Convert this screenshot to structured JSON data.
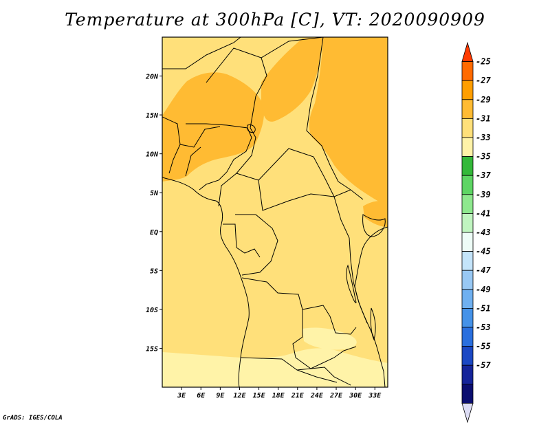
{
  "title": "Temperature at 300hPa [C], VT: 2020090909",
  "footer": "GrADS: IGES/COLA",
  "map": {
    "lon_range": [
      0,
      35
    ],
    "lat_range": [
      -20,
      25
    ],
    "lon_ticks": [
      "3E",
      "6E",
      "9E",
      "12E",
      "15E",
      "18E",
      "21E",
      "24E",
      "27E",
      "30E",
      "33E"
    ],
    "lat_ticks": [
      "20N",
      "15N",
      "10N",
      "5N",
      "EQ",
      "5S",
      "10S",
      "15S"
    ]
  },
  "colorbar": {
    "labels": [
      "-25",
      "-27",
      "-29",
      "-31",
      "-33",
      "-35",
      "-37",
      "-39",
      "-41",
      "-43",
      "-45",
      "-47",
      "-49",
      "-51",
      "-53",
      "-55",
      "-57"
    ],
    "colors": [
      "#ff3a00",
      "#ff6a00",
      "#ff9e00",
      "#ffbb33",
      "#ffe07a",
      "#fff3a8",
      "#34b83a",
      "#5ed564",
      "#8ee88e",
      "#c0f5c0",
      "#eefcf7",
      "#c4e4fa",
      "#98c8f4",
      "#6fb0f0",
      "#4592e8",
      "#2a6fde",
      "#1b48c4",
      "#15249a",
      "#0b0e70",
      "#ddddf5"
    ]
  },
  "field_colors": {
    "c_lt33": "#fff3a8",
    "c_31_33": "#ffe07a",
    "c_29_31": "#ffbb33"
  }
}
